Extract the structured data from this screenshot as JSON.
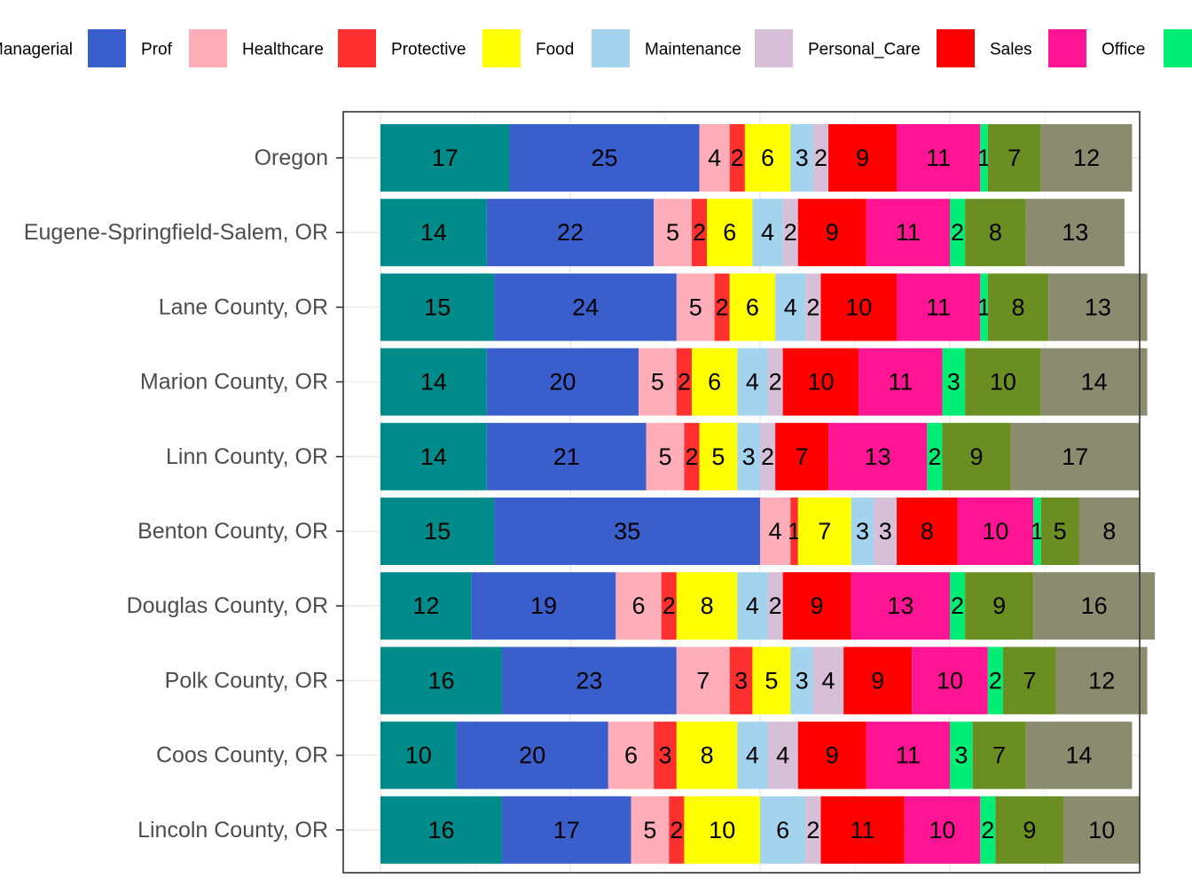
{
  "chart_data": {
    "type": "bar",
    "orientation": "horizontal",
    "stacked": true,
    "grid": true,
    "legend_position": "top",
    "categories": [
      "Oregon",
      "Eugene-Springfield-Salem, OR",
      "Lane County, OR",
      "Marion County, OR",
      "Linn County, OR",
      "Benton County, OR",
      "Douglas County, OR",
      "Polk County, OR",
      "Coos County, OR",
      "Lincoln County, OR"
    ],
    "series": [
      {
        "name": "Managerial",
        "color": "#008B8B",
        "values": [
          17,
          14,
          15,
          14,
          14,
          15,
          12,
          16,
          10,
          16
        ]
      },
      {
        "name": "Prof",
        "color": "#3A5FCD",
        "values": [
          25,
          22,
          24,
          20,
          21,
          35,
          19,
          23,
          20,
          17
        ]
      },
      {
        "name": "Healthcare",
        "color": "#FFAEB9",
        "values": [
          4,
          5,
          5,
          5,
          5,
          4,
          6,
          7,
          6,
          5
        ]
      },
      {
        "name": "Protective",
        "color": "#FF3030",
        "values": [
          2,
          2,
          2,
          2,
          2,
          1,
          2,
          3,
          3,
          2
        ]
      },
      {
        "name": "Food",
        "color": "#FFFF00",
        "values": [
          6,
          6,
          6,
          6,
          5,
          7,
          8,
          5,
          8,
          10
        ]
      },
      {
        "name": "Maintenance",
        "color": "#A4D3EE",
        "values": [
          3,
          4,
          4,
          4,
          3,
          3,
          4,
          3,
          4,
          6
        ]
      },
      {
        "name": "Personal_Care",
        "color": "#D8BFD8",
        "values": [
          2,
          2,
          2,
          2,
          2,
          3,
          2,
          4,
          4,
          2
        ]
      },
      {
        "name": "Sales",
        "color": "#FF0000",
        "values": [
          9,
          9,
          10,
          10,
          7,
          8,
          9,
          9,
          9,
          11
        ]
      },
      {
        "name": "Office",
        "color": "#FF1493",
        "values": [
          11,
          11,
          11,
          11,
          13,
          10,
          13,
          10,
          11,
          10
        ]
      },
      {
        "name": "",
        "color": "#00EE76",
        "values": [
          1,
          2,
          1,
          3,
          2,
          1,
          2,
          2,
          3,
          2
        ]
      },
      {
        "name": "",
        "color": "#6B8E23",
        "values": [
          7,
          8,
          8,
          10,
          9,
          5,
          9,
          7,
          7,
          9
        ]
      },
      {
        "name": "",
        "color": "#8B8B6F",
        "values": [
          12,
          13,
          13,
          14,
          17,
          8,
          16,
          12,
          14,
          10
        ]
      }
    ],
    "xlim": [
      0,
      100
    ],
    "title": "",
    "xlabel": "",
    "ylabel": ""
  }
}
